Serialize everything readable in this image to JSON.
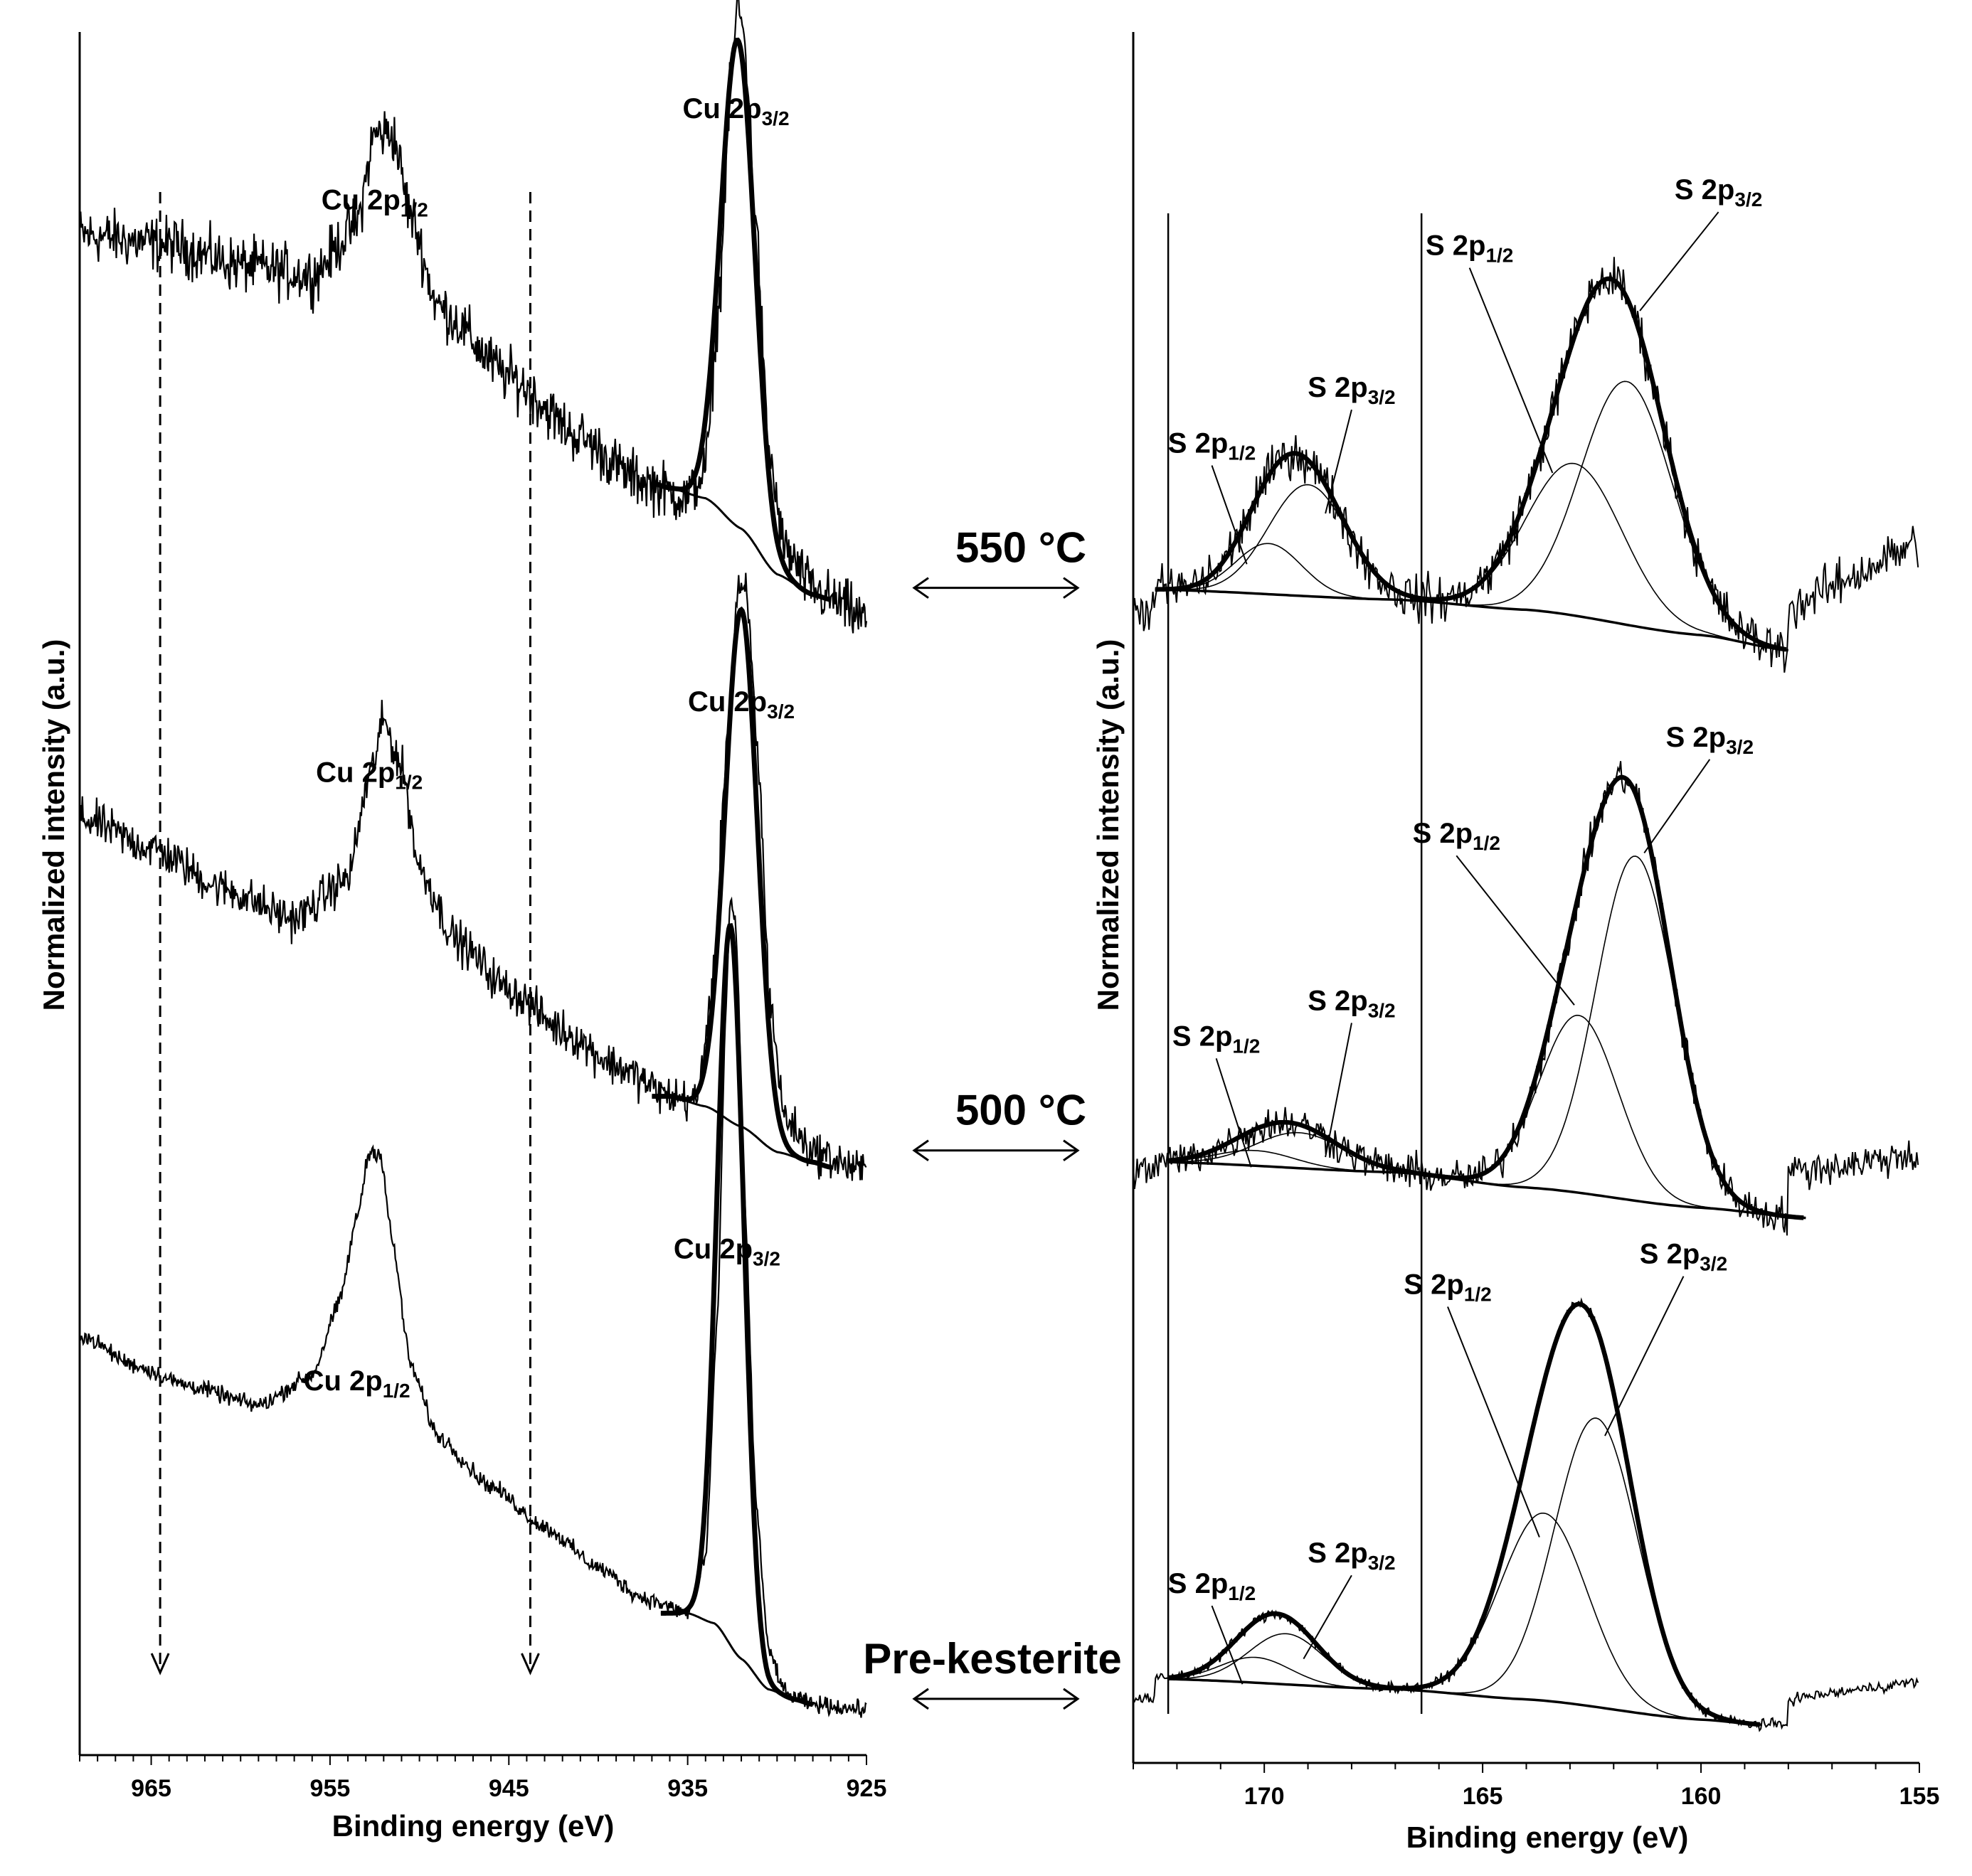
{
  "chart_data": [
    {
      "type": "line",
      "panel": "left",
      "title": "",
      "xlabel": "Binding energy (eV)",
      "ylabel": "Normalized intensity (a.u.)",
      "xlim": [
        969,
        925
      ],
      "x_reversed": true,
      "xticks": [
        965,
        955,
        945,
        935,
        925
      ],
      "ylim": [
        0,
        3.4
      ],
      "grid": false,
      "dashed_markers": [
        964.5,
        943.8
      ],
      "series": [
        {
          "name": "550 °C",
          "offset": 2.24,
          "noise": 0.06,
          "raw": [
            [
              969,
              0.76
            ],
            [
              964,
              0.74
            ],
            [
              960,
              0.7
            ],
            [
              956,
              0.68
            ],
            [
              953.5,
              0.78
            ],
            [
              952.5,
              0.96
            ],
            [
              951.5,
              0.96
            ],
            [
              950.5,
              0.8
            ],
            [
              949,
              0.62
            ],
            [
              945,
              0.48
            ],
            [
              941,
              0.36
            ],
            [
              938,
              0.28
            ],
            [
              935,
              0.24
            ],
            [
              934,
              0.3
            ],
            [
              933.3,
              0.6
            ],
            [
              932.6,
              1.05
            ],
            [
              932.2,
              1.22
            ],
            [
              931.8,
              1.14
            ],
            [
              931.2,
              0.8
            ],
            [
              930.5,
              0.34
            ],
            [
              929.6,
              0.14
            ],
            [
              928,
              0.06
            ],
            [
              927,
              0.04
            ],
            [
              925,
              0.0
            ]
          ],
          "fit_peak": {
            "center": 932.2,
            "height": 0.96,
            "sigma": 0.95
          },
          "background": [
            [
              937,
              0.27
            ],
            [
              936,
              0.26
            ],
            [
              934,
              0.24
            ],
            [
              932,
              0.18
            ],
            [
              930,
              0.09
            ],
            [
              928,
              0.05
            ],
            [
              927,
              0.04
            ]
          ]
        },
        {
          "name": "500 °C",
          "offset": 1.13,
          "noise": 0.045,
          "raw": [
            [
              969,
              0.72
            ],
            [
              965,
              0.66
            ],
            [
              961,
              0.58
            ],
            [
              957,
              0.52
            ],
            [
              954,
              0.6
            ],
            [
              952.8,
              0.8
            ],
            [
              952,
              0.91
            ],
            [
              951,
              0.82
            ],
            [
              950,
              0.62
            ],
            [
              948,
              0.48
            ],
            [
              945,
              0.38
            ],
            [
              942,
              0.3
            ],
            [
              939,
              0.23
            ],
            [
              936,
              0.17
            ],
            [
              934.5,
              0.16
            ],
            [
              933.6,
              0.38
            ],
            [
              932.8,
              0.88
            ],
            [
              932.2,
              1.16
            ],
            [
              931.7,
              1.16
            ],
            [
              931.1,
              0.86
            ],
            [
              930.4,
              0.36
            ],
            [
              929.6,
              0.13
            ],
            [
              928,
              0.06
            ],
            [
              925,
              0.02
            ]
          ],
          "fit_peak": {
            "center": 932.0,
            "height": 1.02,
            "sigma": 0.9
          },
          "background": [
            [
              937,
              0.17
            ],
            [
              936,
              0.17
            ],
            [
              934,
              0.15
            ],
            [
              932,
              0.11
            ],
            [
              930,
              0.06
            ],
            [
              928,
              0.04
            ],
            [
              927,
              0.03
            ]
          ]
        },
        {
          "name": "Pre-kesterite",
          "offset": 0.09,
          "noise": 0.018,
          "raw": [
            [
              969,
              0.74
            ],
            [
              966,
              0.68
            ],
            [
              963,
              0.64
            ],
            [
              959,
              0.6
            ],
            [
              956,
              0.66
            ],
            [
              954.5,
              0.8
            ],
            [
              953.5,
              0.97
            ],
            [
              952.8,
              1.1
            ],
            [
              952.2,
              1.1
            ],
            [
              951.5,
              0.92
            ],
            [
              950.5,
              0.68
            ],
            [
              949,
              0.54
            ],
            [
              946,
              0.44
            ],
            [
              943,
              0.36
            ],
            [
              940,
              0.28
            ],
            [
              937.5,
              0.22
            ],
            [
              935,
              0.19
            ],
            [
              934,
              0.3
            ],
            [
              933.3,
              0.8
            ],
            [
              932.9,
              1.35
            ],
            [
              932.6,
              1.6
            ],
            [
              932.3,
              1.54
            ],
            [
              931.8,
              1.0
            ],
            [
              931.2,
              0.42
            ],
            [
              930.5,
              0.12
            ],
            [
              929.5,
              0.03
            ],
            [
              928,
              0.01
            ],
            [
              925,
              0.0
            ]
          ],
          "fit_peak": {
            "center": 932.6,
            "height": 1.42,
            "sigma": 0.75
          },
          "background": [
            [
              936.5,
              0.19
            ],
            [
              935,
              0.19
            ],
            [
              933.5,
              0.17
            ],
            [
              932,
              0.1
            ],
            [
              930.5,
              0.04
            ],
            [
              929,
              0.02
            ],
            [
              928,
              0.01
            ]
          ]
        }
      ],
      "annotations": [
        {
          "main": "Cu 2p",
          "sub": "3/2",
          "x": 932.3,
          "y": 3.23
        },
        {
          "main": "Cu 2p",
          "sub": "1/2",
          "x": 952.5,
          "y": 3.05
        },
        {
          "main": "Cu 2p",
          "sub": "3/2",
          "x": 932.0,
          "y": 2.06
        },
        {
          "main": "Cu 2p",
          "sub": "1/2",
          "x": 952.8,
          "y": 1.92
        },
        {
          "main": "Cu 2p",
          "sub": "3/2",
          "x": 932.8,
          "y": 0.98
        },
        {
          "main": "Cu 2p",
          "sub": "1/2",
          "x": 953.5,
          "y": 0.72
        }
      ]
    },
    {
      "type": "line",
      "panel": "right",
      "title": "",
      "xlabel": "Binding energy (eV)",
      "ylabel": "Normalized intensity (a.u.)",
      "xlim": [
        173,
        155
      ],
      "x_reversed": true,
      "xticks": [
        170,
        165,
        160,
        155
      ],
      "ylim": [
        0,
        3.4
      ],
      "grid": false,
      "vertical_lines": [
        172.2,
        166.4
      ],
      "series": [
        {
          "name": "550 °C",
          "offset": 2.24,
          "noise": 0.05,
          "components": [
            {
              "label": "S 2p1/2",
              "center": 169.9,
              "height": 0.1,
              "sigma": 0.75
            },
            {
              "label": "S 2p3/2",
              "center": 169.0,
              "height": 0.22,
              "sigma": 0.9
            },
            {
              "label": "S 2p1/2",
              "center": 162.9,
              "height": 0.3,
              "sigma": 1.1
            },
            {
              "label": "S 2p3/2",
              "center": 161.7,
              "height": 0.48,
              "sigma": 1.05
            }
          ],
          "background": [
            [
              172.5,
              0.06
            ],
            [
              167,
              0.04
            ],
            [
              164,
              0.02
            ],
            [
              160,
              -0.03
            ],
            [
              158,
              -0.06
            ]
          ],
          "raw_extent": [
            173,
            155
          ]
        },
        {
          "name": "500 °C",
          "offset": 1.13,
          "noise": 0.04,
          "components": [
            {
              "label": "S 2p1/2",
              "center": 170.2,
              "height": 0.03,
              "sigma": 0.9
            },
            {
              "label": "S 2p3/2",
              "center": 169.2,
              "height": 0.07,
              "sigma": 1.0
            },
            {
              "label": "S 2p1/2",
              "center": 162.8,
              "height": 0.35,
              "sigma": 0.9
            },
            {
              "label": "S 2p3/2",
              "center": 161.5,
              "height": 0.68,
              "sigma": 0.9
            }
          ],
          "background": [
            [
              172.2,
              0.04
            ],
            [
              167,
              0.02
            ],
            [
              164,
              -0.01
            ],
            [
              160,
              -0.05
            ],
            [
              157.6,
              -0.07
            ]
          ],
          "raw_extent": [
            173,
            155
          ]
        },
        {
          "name": "Pre-kesterite",
          "offset": 0.09,
          "noise": 0.012,
          "components": [
            {
              "label": "S 2p1/2",
              "center": 170.2,
              "height": 0.05,
              "sigma": 0.8
            },
            {
              "label": "S 2p3/2",
              "center": 169.5,
              "height": 0.1,
              "sigma": 0.85
            },
            {
              "label": "S 2p1/2",
              "center": 163.6,
              "height": 0.37,
              "sigma": 1.0
            },
            {
              "label": "S 2p3/2",
              "center": 162.4,
              "height": 0.57,
              "sigma": 0.95
            }
          ],
          "background": [
            [
              172.2,
              0.06
            ],
            [
              167,
              0.04
            ],
            [
              164,
              0.02
            ],
            [
              160,
              -0.02
            ],
            [
              158.6,
              -0.03
            ]
          ],
          "raw_extent": [
            173,
            155
          ]
        }
      ],
      "annotations": [
        {
          "main": "S 2p",
          "sub": "3/2",
          "x": 159.6,
          "y": 3.07,
          "line_to": [
            161.4,
            2.85
          ]
        },
        {
          "main": "S 2p",
          "sub": "1/2",
          "x": 165.3,
          "y": 2.96,
          "line_to": [
            163.4,
            2.53
          ]
        },
        {
          "main": "S 2p",
          "sub": "3/2",
          "x": 168.0,
          "y": 2.68,
          "line_to": [
            168.6,
            2.45
          ]
        },
        {
          "main": "S 2p",
          "sub": "1/2",
          "x": 171.2,
          "y": 2.57,
          "line_to": [
            170.4,
            2.35
          ]
        },
        {
          "main": "S 2p",
          "sub": "3/2",
          "x": 159.8,
          "y": 1.99,
          "line_to": [
            161.3,
            1.78
          ]
        },
        {
          "main": "S 2p",
          "sub": "1/2",
          "x": 165.6,
          "y": 1.8,
          "line_to": [
            162.9,
            1.48
          ]
        },
        {
          "main": "S 2p",
          "sub": "3/2",
          "x": 168.0,
          "y": 1.47,
          "line_to": [
            168.6,
            1.18
          ]
        },
        {
          "main": "S 2p",
          "sub": "1/2",
          "x": 171.1,
          "y": 1.4,
          "line_to": [
            170.3,
            1.16
          ]
        },
        {
          "main": "S 2p",
          "sub": "3/2",
          "x": 160.4,
          "y": 0.97,
          "line_to": [
            162.2,
            0.63
          ]
        },
        {
          "main": "S 2p",
          "sub": "1/2",
          "x": 165.8,
          "y": 0.91,
          "line_to": [
            163.7,
            0.43
          ]
        },
        {
          "main": "S 2p",
          "sub": "3/2",
          "x": 168.0,
          "y": 0.38,
          "line_to": [
            169.1,
            0.19
          ]
        },
        {
          "main": "S 2p",
          "sub": "1/2",
          "x": 171.2,
          "y": 0.32,
          "line_to": [
            170.5,
            0.14
          ]
        }
      ]
    }
  ],
  "temperature_labels": [
    {
      "text": "550 °C",
      "y": 2.24
    },
    {
      "text": "500 °C",
      "y": 1.13
    },
    {
      "text": "Pre-kesterite",
      "y": 0.09
    }
  ]
}
